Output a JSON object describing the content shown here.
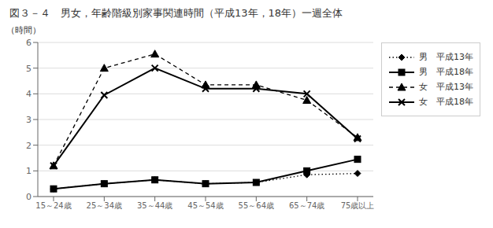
{
  "chart_data": {
    "type": "line",
    "title": "図３－４　男女，年齢階級別家事関連時間（平成13年，18年）一週全体",
    "ylabel": "（時間）",
    "categories": [
      "15～24歳",
      "25～34歳",
      "35～44歳",
      "45～54歳",
      "55～64歳",
      "65～74歳",
      "75歳以上"
    ],
    "series": [
      {
        "name": "男　平成13年",
        "color": "#000000",
        "marker": "diamond",
        "line_style": "dotted",
        "values": [
          0.3,
          0.5,
          0.65,
          0.5,
          0.55,
          0.85,
          0.9
        ]
      },
      {
        "name": "男　平成18年",
        "color": "#000000",
        "marker": "square",
        "line_style": "solid",
        "values": [
          0.3,
          0.5,
          0.65,
          0.5,
          0.55,
          1.0,
          1.45
        ]
      },
      {
        "name": "女　平成13年",
        "color": "#000000",
        "marker": "triangle",
        "line_style": "dashed",
        "values": [
          1.2,
          5.0,
          5.55,
          4.35,
          4.35,
          3.75,
          2.3
        ]
      },
      {
        "name": "女　平成18年",
        "color": "#000000",
        "marker": "x",
        "line_style": "solid",
        "values": [
          1.2,
          3.95,
          5.0,
          4.2,
          4.2,
          4.0,
          2.25
        ]
      }
    ],
    "ylim": [
      0,
      6
    ],
    "yticks": [
      0,
      1,
      2,
      3,
      4,
      5,
      6
    ],
    "grid": "y",
    "legend": "right"
  }
}
